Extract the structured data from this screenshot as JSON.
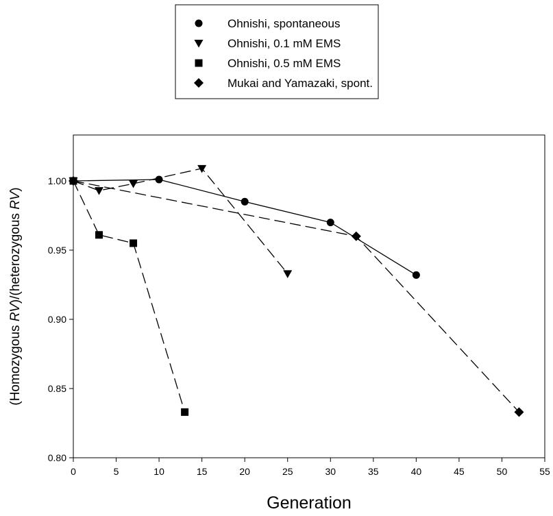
{
  "chart_data": {
    "type": "line",
    "title": "",
    "xlabel": "Generation",
    "ylabel": {
      "parts": [
        {
          "text": "(Homozygous ",
          "italic": false
        },
        {
          "text": "RV",
          "italic": true
        },
        {
          "text": ")/(heterozygous ",
          "italic": false
        },
        {
          "text": "RV",
          "italic": true
        },
        {
          "text": ")",
          "italic": false
        }
      ]
    },
    "xlim": [
      0,
      55
    ],
    "ylim": [
      0.8,
      1.04
    ],
    "xticks": [
      "0",
      "5",
      "10",
      "15",
      "20",
      "25",
      "30",
      "35",
      "40",
      "45",
      "50",
      "55"
    ],
    "yticks": [
      "0.80",
      "0.85",
      "0.90",
      "0.95",
      "1.00"
    ],
    "grid": false,
    "legend_position": "top-center",
    "series": [
      {
        "name": "Ohnishi, spontaneous",
        "marker": "circle",
        "line": "solid",
        "points": [
          [
            0,
            1.0
          ],
          [
            10,
            1.001
          ],
          [
            20,
            0.985
          ],
          [
            30,
            0.97
          ],
          [
            40,
            0.932
          ]
        ]
      },
      {
        "name": "Ohnishi, 0.1 mM EMS",
        "marker": "triangle-down",
        "line": "dashed",
        "points": [
          [
            0,
            1.0
          ],
          [
            3,
            0.993
          ],
          [
            7,
            0.998
          ],
          [
            15,
            1.009
          ],
          [
            25,
            0.933
          ]
        ]
      },
      {
        "name": "Ohnishi, 0.5 mM EMS",
        "marker": "square",
        "line": "dashed",
        "points": [
          [
            0,
            1.0
          ],
          [
            3,
            0.961
          ],
          [
            7,
            0.955
          ],
          [
            13,
            0.833
          ]
        ]
      },
      {
        "name": "Mukai and Yamazaki, spont.",
        "marker": "diamond",
        "line": "dashed",
        "points": [
          [
            0,
            1.0
          ],
          [
            33,
            0.96
          ],
          [
            52,
            0.833
          ]
        ]
      }
    ]
  }
}
